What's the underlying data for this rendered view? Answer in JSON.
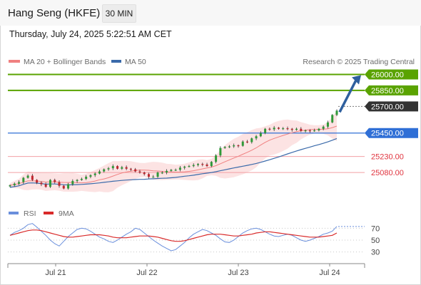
{
  "header": {
    "title": "Hang Seng (HKFE)",
    "timeframe": "30 MIN",
    "timestamp": "Thursday, July 24, 2025 5:22:51 AM CET"
  },
  "legend": {
    "ma20": "MA 20 + Bollinger Bands",
    "ma50": "MA 50",
    "credit": "Research © 2025 Trading Central",
    "rsi": "RSI",
    "rsi_ma": "9MA"
  },
  "colors": {
    "ma20": "#f08080",
    "bollinger_fill": "#fbdede",
    "ma50": "#3a6aaa",
    "target": "#5aa300",
    "pivot": "#2f6fd6",
    "support": "#e0343f",
    "current": "#333333",
    "arrow": "#2e5f9e",
    "candle_up": "#2f9a38",
    "candle_down": "#c0262e",
    "rsi": "#6a8fdc",
    "rsi_ma": "#d92a2a"
  },
  "chart_data": [
    {
      "type": "candlestick",
      "title": "Hang Seng (HKFE)",
      "timeframe": "30 MIN",
      "x_labels": [
        "Jul 21",
        "Jul 22",
        "Jul 23",
        "Jul 24"
      ],
      "ylim": [
        24880,
        26050
      ],
      "closes": [
        24960,
        24975,
        24990,
        25030,
        25050,
        25010,
        24985,
        24970,
        24945,
        25010,
        24990,
        24955,
        24930,
        24970,
        25000,
        25010,
        25020,
        25040,
        25055,
        25070,
        25090,
        25110,
        25120,
        25140,
        25115,
        25130,
        25115,
        25110,
        25090,
        25080,
        25065,
        25040,
        25040,
        25080,
        25080,
        25095,
        25105,
        25105,
        25125,
        25135,
        25140,
        25150,
        25160,
        25155,
        25140,
        25180,
        25240,
        25310,
        25320,
        25325,
        25335,
        25330,
        25370,
        25365,
        25400,
        25420,
        25450,
        25490,
        25485,
        25500,
        25490,
        25495,
        25490,
        25480,
        25490,
        25470,
        25475,
        25470,
        25475,
        25490,
        25510,
        25550,
        25620,
        25660
      ],
      "levels": [
        {
          "label": "26000.00",
          "value": 26000,
          "kind": "target"
        },
        {
          "label": "25850.00",
          "value": 25850,
          "kind": "target"
        },
        {
          "label": "25700.00",
          "value": 25700,
          "kind": "current"
        },
        {
          "label": "25450.00",
          "value": 25450,
          "kind": "pivot"
        },
        {
          "label": "25230.00",
          "value": 25230,
          "kind": "support"
        },
        {
          "label": "25080.00",
          "value": 25080,
          "kind": "support"
        }
      ]
    },
    {
      "type": "line",
      "series": [
        {
          "name": "RSI",
          "values": [
            58,
            63,
            66,
            70,
            76,
            78,
            72,
            65,
            58,
            50,
            44,
            40,
            48,
            56,
            62,
            68,
            70,
            69,
            65,
            60,
            55,
            52,
            48,
            46,
            50,
            55,
            60,
            64,
            70,
            68,
            62,
            56,
            50,
            45,
            40,
            36,
            32,
            34,
            40,
            46,
            54,
            60,
            64,
            68,
            66,
            62,
            58,
            52,
            47,
            46,
            50,
            56,
            62,
            66,
            69,
            70,
            68,
            64,
            60,
            57,
            56,
            58,
            60,
            58,
            54,
            50,
            48,
            50,
            53,
            56,
            60,
            62,
            65,
            73
          ]
        },
        {
          "name": "9MA",
          "values": [
            58,
            60,
            62,
            64,
            66,
            67,
            67,
            66,
            64,
            62,
            60,
            58,
            56,
            55,
            55,
            56,
            57,
            58,
            59,
            59,
            59,
            58,
            57,
            55,
            54,
            54,
            54,
            55,
            56,
            57,
            57,
            57,
            56,
            55,
            53,
            51,
            49,
            48,
            48,
            49,
            51,
            53,
            55,
            57,
            59,
            60,
            60,
            60,
            59,
            58,
            57,
            57,
            58,
            59,
            60,
            62,
            63,
            64,
            64,
            63,
            62,
            61,
            60,
            59,
            58,
            57,
            56,
            55,
            55,
            55,
            56,
            57,
            58,
            62
          ]
        }
      ],
      "ticks": [
        70,
        50,
        30
      ],
      "ylim": [
        20,
        80
      ]
    }
  ]
}
